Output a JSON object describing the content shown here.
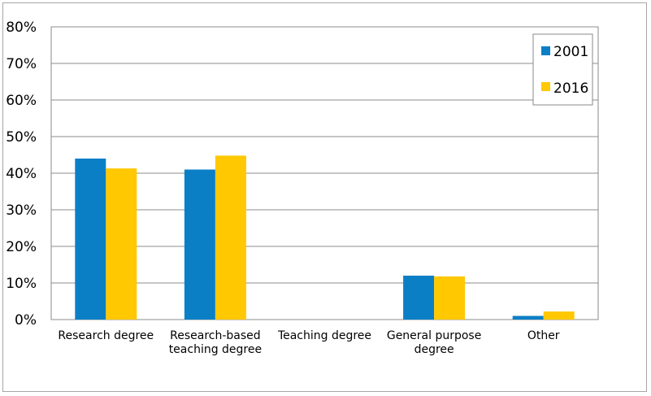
{
  "chart_data": {
    "type": "bar",
    "categories": [
      [
        "Research degree"
      ],
      [
        "Research-based",
        "teaching degree"
      ],
      [
        "Teaching degree"
      ],
      [
        "General purpose",
        "degree"
      ],
      [
        "Other"
      ]
    ],
    "series": [
      {
        "name": "2001",
        "color": "#0a7fc6",
        "values": [
          44,
          41,
          0,
          12,
          1
        ]
      },
      {
        "name": "2016",
        "color": "#ffc800",
        "values": [
          41.3,
          44.8,
          0,
          11.8,
          2.2
        ]
      }
    ],
    "ylim": [
      0,
      80
    ],
    "yticks": [
      "0%",
      "10%",
      "20%",
      "30%",
      "40%",
      "50%",
      "60%",
      "70%",
      "80%"
    ],
    "grid": true,
    "legend_position": "top-right"
  }
}
